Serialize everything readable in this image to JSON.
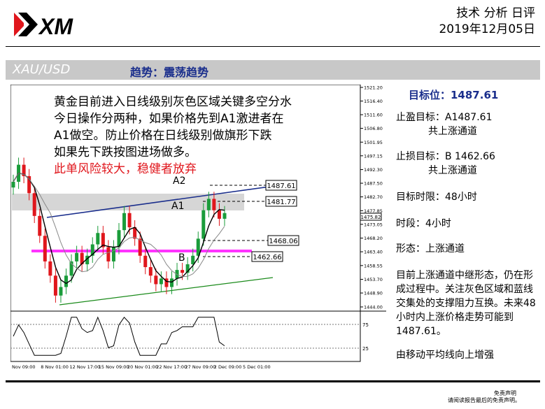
{
  "header": {
    "logo_text": "XM",
    "title": "技术 分析 日评",
    "date": "2019年12月05日"
  },
  "banner": {
    "pair": "XAU/USD",
    "trend": "趋势：震荡趋势"
  },
  "annotation": {
    "lines": [
      "黄金目前进入日线级别灰色区域关键多空分水",
      "今日操作分两种，如果价格先到A1激进者在",
      "A1做空。防止价格在日线级别做旗形下跌",
      "如果先下跌按图进场做多。"
    ],
    "warning": "此单风险较大，稳健者放弃"
  },
  "chart_data": {
    "type": "candlestick",
    "x_tick_labels": [
      "Nov 09:00",
      "8 Nov 01:00",
      "12 Nov 17:00",
      "15 Nov 09:00",
      "20 Nov 01:00",
      "22 Nov 17:00",
      "27 Nov 09:00",
      "2 Dec 09:00",
      "5 Dec 01:00"
    ],
    "y_tick_labels": [
      "1521.20",
      "1516.40",
      "1511.60",
      "1506.80",
      "1501.95",
      "1497.15",
      "1492.30",
      "1487.50",
      "1482.70",
      "1477.85",
      "1473.05",
      "1468.20",
      "1463.40",
      "1458.55",
      "1453.70",
      "1448.90",
      "1444.00"
    ],
    "ylim": [
      1444.0,
      1521.2
    ],
    "current_price": "1475.82",
    "price_labels": [
      "1487.61",
      "1481.77",
      "1468.06",
      "1462.66"
    ],
    "point_labels": [
      "A2",
      "A1",
      "B"
    ],
    "oscillator_ticks": [
      "75",
      "25"
    ],
    "closes": [
      1488,
      1494,
      1490,
      1484,
      1476,
      1469,
      1460,
      1455,
      1448,
      1451,
      1455,
      1460,
      1463,
      1459,
      1462,
      1466,
      1470,
      1465,
      1460,
      1465,
      1471,
      1477,
      1472,
      1468,
      1462,
      1458,
      1455,
      1452,
      1454,
      1451,
      1454,
      1457,
      1456,
      1459,
      1462,
      1468,
      1478,
      1482,
      1478,
      1475,
      1477
    ]
  },
  "sidebar": {
    "target": "目标位：1487.61",
    "tp_label": "止盈目标：A1487.61",
    "tp_sub": "共上涨通道",
    "sl_label": "止损目标：B 1462.66",
    "sl_sub": "共上涨通道",
    "time_limit": "目标时限：48小时",
    "timeframe": "时段：4小时",
    "pattern": "形态：上涨通道",
    "desc": "目前上涨通道中继形态，仍在形成过程中。关注灰色区域和蓝线交集处的支撑阻力互换。未来48小时内上涨价格走势可能到1487.61。",
    "ma_note": "由移动平均线向上增强"
  },
  "footer": {
    "line1": "免责声明",
    "line2": "请阅读报告最后的免责声明。"
  },
  "colors": {
    "brand_blue": "#1a2e8c",
    "warning_red": "#e0161c",
    "bull_green": "#1a9c3a",
    "bear_red": "#e0161c",
    "support_magenta": "#ff33ff",
    "support_line_green": "#1a8a1a",
    "resistance_blue": "#1a2e8c"
  }
}
